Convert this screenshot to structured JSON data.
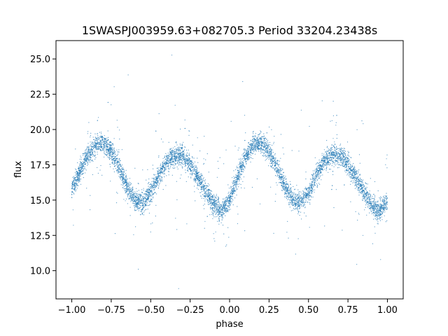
{
  "chart_data": {
    "type": "scatter",
    "title": "1SWASPJ003959.63+082705.3 Period 33204.23438s",
    "xlabel": "phase",
    "ylabel": "flux",
    "xlim": [
      -1.1,
      1.1
    ],
    "ylim": [
      8.0,
      26.3
    ],
    "xticks": [
      -1.0,
      -0.75,
      -0.5,
      -0.25,
      0.0,
      0.25,
      0.5,
      0.75,
      1.0
    ],
    "xtick_labels": [
      "−1.00",
      "−0.75",
      "−0.50",
      "−0.25",
      "0.00",
      "0.25",
      "0.50",
      "0.75",
      "1.00"
    ],
    "yticks": [
      10.0,
      12.5,
      15.0,
      17.5,
      20.0,
      22.5,
      25.0
    ],
    "ytick_labels": [
      "10.0",
      "12.5",
      "15.0",
      "17.5",
      "20.0",
      "22.5",
      "25.0"
    ],
    "grid": false,
    "point_color": "#1f77b4",
    "series": [
      {
        "x": [
          -1.0,
          -0.95,
          -0.9,
          -0.85,
          -0.8,
          -0.75,
          -0.7,
          -0.65,
          -0.6,
          -0.55,
          -0.5,
          -0.45,
          -0.4,
          -0.35,
          -0.3,
          -0.25,
          -0.2,
          -0.15,
          -0.1,
          -0.05,
          0.0,
          0.05,
          0.1,
          0.15,
          0.2,
          0.25,
          0.3,
          0.35,
          0.4,
          0.45,
          0.5,
          0.55,
          0.6,
          0.65,
          0.7,
          0.75,
          0.8,
          0.85,
          0.9,
          0.95,
          1.0
        ],
        "y": [
          15.7,
          17.0,
          18.2,
          18.9,
          19.0,
          18.5,
          17.3,
          16.0,
          15.0,
          14.8,
          15.5,
          16.7,
          17.7,
          18.2,
          18.1,
          17.5,
          16.6,
          15.6,
          14.7,
          14.2,
          14.9,
          16.6,
          18.0,
          18.9,
          19.0,
          18.5,
          17.3,
          16.0,
          15.0,
          14.8,
          15.5,
          16.7,
          17.7,
          18.2,
          18.1,
          17.5,
          16.6,
          15.6,
          14.7,
          14.2,
          15.0
        ]
      }
    ]
  }
}
